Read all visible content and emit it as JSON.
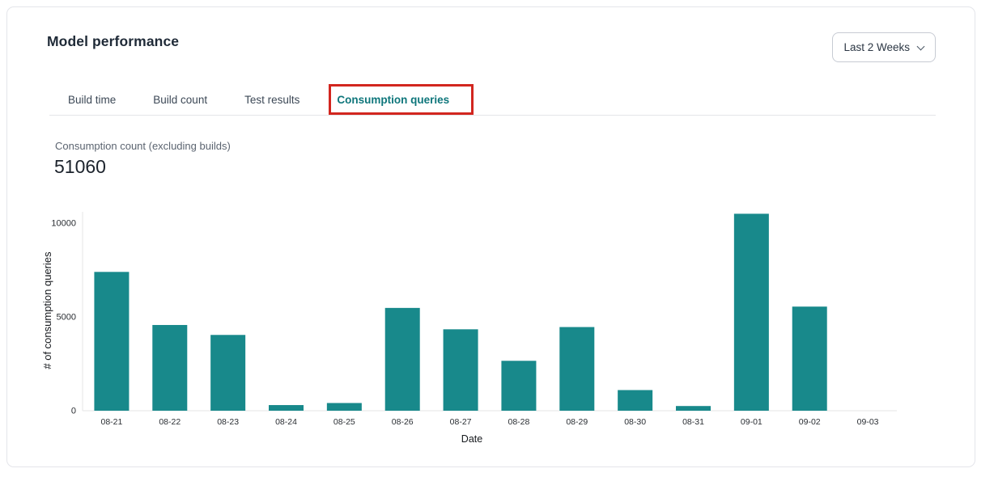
{
  "header": {
    "title": "Model performance",
    "range_selector": {
      "label": "Last 2 Weeks",
      "icon": "chevron-down"
    }
  },
  "tabs": {
    "items": [
      {
        "label": "Build time",
        "active": false
      },
      {
        "label": "Build count",
        "active": false
      },
      {
        "label": "Test results",
        "active": false
      },
      {
        "label": "Consumption queries",
        "active": true
      }
    ],
    "active_color": "#0E767B",
    "inactive_color": "#3C4856",
    "highlight_box_color": "#D2261F"
  },
  "metric": {
    "label": "Consumption count (excluding builds)",
    "value": "51060"
  },
  "chart_data": {
    "type": "bar",
    "categories": [
      "08-21",
      "08-22",
      "08-23",
      "08-24",
      "08-25",
      "08-26",
      "08-27",
      "08-28",
      "08-29",
      "08-30",
      "08-31",
      "09-01",
      "09-02",
      "09-03"
    ],
    "values": [
      7400,
      4570,
      4040,
      300,
      410,
      5480,
      4340,
      2660,
      4460,
      1100,
      250,
      10500,
      5550,
      0
    ],
    "total": 51060,
    "title": "",
    "xlabel": "Date",
    "ylabel": "# of consumption queries",
    "yticks": [
      0,
      5000,
      10000
    ],
    "ylim": [
      0,
      10880
    ],
    "bar_color": "#18898B",
    "axis_color": "#E4E4E6",
    "tick_text_color": "#2A2E33",
    "grid": false,
    "legend": false
  }
}
